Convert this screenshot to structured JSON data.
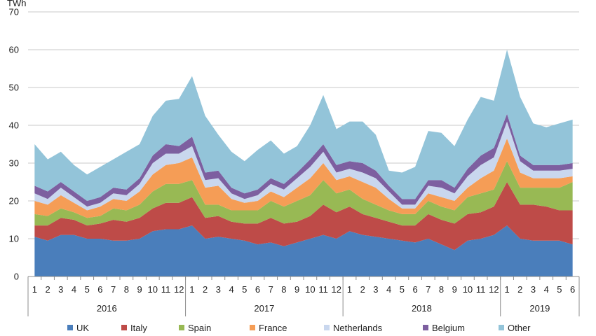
{
  "chart_data": {
    "type": "area",
    "stacked": true,
    "ylabel": "TWh",
    "ylim": [
      0,
      70
    ],
    "yticks": [
      0,
      10,
      20,
      30,
      40,
      50,
      60,
      70
    ],
    "grid": true,
    "legend_position": "bottom",
    "x": [
      "1",
      "2",
      "3",
      "4",
      "5",
      "6",
      "7",
      "8",
      "9",
      "10",
      "11",
      "12",
      "1",
      "2",
      "3",
      "4",
      "5",
      "6",
      "7",
      "8",
      "9",
      "10",
      "11",
      "12",
      "1",
      "2",
      "3",
      "4",
      "5",
      "6",
      "7",
      "8",
      "9",
      "10",
      "11",
      "12",
      "1",
      "2",
      "3",
      "4",
      "5",
      "6"
    ],
    "years": [
      {
        "label": "2016",
        "start": 0,
        "count": 12
      },
      {
        "label": "2017",
        "start": 12,
        "count": 12
      },
      {
        "label": "2018",
        "start": 24,
        "count": 12
      },
      {
        "label": "2019",
        "start": 36,
        "count": 6
      }
    ],
    "series": [
      {
        "name": "UK",
        "color": "#4a7ebb",
        "values": [
          10.5,
          9.5,
          11,
          11,
          10,
          10,
          9.5,
          9.5,
          10,
          12,
          12.5,
          12.5,
          13.5,
          10,
          10.5,
          10,
          9.5,
          8.5,
          9,
          8,
          9,
          10,
          11,
          10,
          12,
          11,
          10.5,
          10,
          9.5,
          9,
          10,
          8.5,
          7,
          9.5,
          10,
          11,
          13.5,
          10,
          9.5,
          9.5,
          9.5,
          8.5
        ]
      },
      {
        "name": "Italy",
        "color": "#be4b48",
        "values": [
          3,
          4,
          4.5,
          4,
          3.5,
          4,
          5.5,
          5,
          5.5,
          6,
          7,
          7,
          7.5,
          5.5,
          5.5,
          4.5,
          4.5,
          5.5,
          6.5,
          6,
          5.5,
          6,
          8,
          7,
          6.5,
          5.5,
          5,
          4.5,
          4,
          4.5,
          6.5,
          6.5,
          7,
          7,
          7,
          7.5,
          11.5,
          9,
          9.5,
          9,
          8,
          9
        ]
      },
      {
        "name": "Spain",
        "color": "#98b954",
        "values": [
          3,
          2.5,
          2.5,
          2,
          2,
          2,
          3,
          3,
          3.5,
          4.5,
          5,
          5,
          4.5,
          3.5,
          3,
          3,
          3.5,
          3.5,
          4.5,
          4.5,
          5.5,
          5.5,
          6.5,
          5,
          4.5,
          4,
          3.5,
          3,
          3,
          3,
          3.5,
          3.5,
          3.5,
          4.5,
          5,
          4.5,
          5.5,
          4.5,
          4.5,
          5,
          6,
          7.5
        ]
      },
      {
        "name": "France",
        "color": "#f59d56",
        "values": [
          3.5,
          3,
          3.5,
          2.5,
          2,
          2.5,
          2.5,
          2.5,
          3.5,
          4.5,
          5,
          5.5,
          6,
          4.5,
          5,
          3,
          2,
          2.5,
          2.5,
          2.5,
          3.5,
          4.5,
          4.5,
          3.5,
          3.5,
          4.5,
          4.5,
          3,
          1.5,
          1.5,
          2,
          2.5,
          2.5,
          2.5,
          4,
          5,
          6,
          4,
          2.5,
          2.5,
          2.5,
          1.5
        ]
      },
      {
        "name": "Netherlands",
        "color": "#c9d7ee",
        "values": [
          2,
          1.5,
          2,
          1.5,
          1,
          1,
          1.5,
          1.5,
          2,
          3,
          3,
          2.5,
          3,
          2,
          2,
          1.5,
          1,
          1.5,
          2,
          2,
          2.5,
          3,
          3,
          2,
          2,
          2.5,
          2.5,
          2,
          1,
          1,
          2,
          2.5,
          2,
          3,
          3.5,
          3.5,
          4.5,
          3,
          2,
          2,
          2,
          2
        ]
      },
      {
        "name": "Belgium",
        "color": "#7d5fa0",
        "values": [
          2,
          2,
          1.5,
          1.5,
          1.5,
          1.5,
          1.5,
          1.5,
          1.5,
          2,
          2.5,
          2,
          2.5,
          2,
          2,
          1.5,
          1.5,
          1.5,
          1.5,
          1.5,
          1.5,
          2,
          2,
          2,
          2,
          2.5,
          2,
          1.5,
          1.5,
          1.5,
          1.5,
          2,
          1.5,
          2,
          2.5,
          2.5,
          2,
          1.5,
          1.5,
          1.5,
          1.5,
          1.5
        ]
      },
      {
        "name": "Other",
        "color": "#93c4d9",
        "values": [
          11,
          8.5,
          8,
          7,
          7,
          8,
          7.5,
          10,
          9,
          10.5,
          11.5,
          12.5,
          16,
          15,
          9.5,
          9.5,
          8.5,
          10.5,
          10,
          8,
          7,
          9,
          13,
          9.5,
          10.5,
          11,
          9.5,
          4,
          7,
          8.5,
          13,
          12.5,
          11,
          13,
          15.5,
          12.5,
          17,
          15.5,
          11,
          10,
          11,
          11.5
        ]
      }
    ]
  }
}
